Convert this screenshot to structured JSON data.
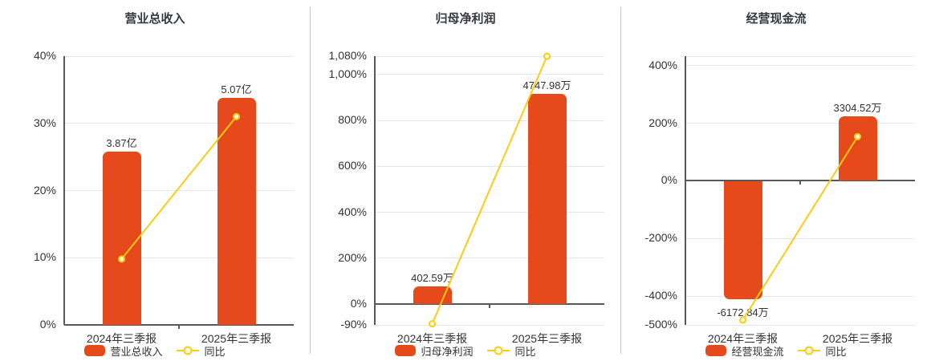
{
  "colors": {
    "bar": "#E6491A",
    "line": "#FACC15",
    "grid": "#E3E6EE",
    "axis": "#55585C",
    "text": "#333333",
    "divider": "#C4C4C4"
  },
  "chart_data": {
    "type": "bar+line",
    "layout_hint": "three panels side by side, legend bottom-center, gridlines on, dark zero axis",
    "charts": [
      {
        "title": "营业总收入",
        "categories": [
          "2024年三季报",
          "2025年三季报"
        ],
        "bar_name": "营业总收入",
        "line_name": "同比",
        "bar_value_labels": [
          "3.87亿",
          "5.07亿"
        ],
        "bar_plot_pct": [
          25.8,
          33.8
        ],
        "bar_label_side": [
          "above",
          "above"
        ],
        "line_pct": [
          9.8,
          31.0
        ],
        "axis": {
          "min": 0,
          "max": 40,
          "top_border": false,
          "ticks": [
            {
              "v": 40,
              "label": "40%"
            },
            {
              "v": 30,
              "label": "30%"
            },
            {
              "v": 20,
              "label": "20%"
            },
            {
              "v": 10,
              "label": "10%"
            },
            {
              "v": 0,
              "label": "0%"
            }
          ]
        }
      },
      {
        "title": "归母净利润",
        "categories": [
          "2024年三季报",
          "2025年三季报"
        ],
        "bar_name": "归母净利润",
        "line_name": "同比",
        "bar_value_labels": [
          "402.59万",
          "4747.98万"
        ],
        "bar_plot_pct": [
          78,
          915
        ],
        "bar_label_side": [
          "above",
          "above"
        ],
        "line_pct": [
          -85,
          1079.4
        ],
        "axis": {
          "min": -90,
          "max": 1080,
          "top_border": false,
          "ticks": [
            {
              "v": 1080,
              "label": "1,080%"
            },
            {
              "v": 1000,
              "label": "1,000%"
            },
            {
              "v": 800,
              "label": "800%"
            },
            {
              "v": 600,
              "label": "600%"
            },
            {
              "v": 400,
              "label": "400%"
            },
            {
              "v": 200,
              "label": "200%"
            },
            {
              "v": 0,
              "label": "0%"
            },
            {
              "v": -90,
              "label": "-90%"
            }
          ]
        }
      },
      {
        "title": "经营现金流",
        "categories": [
          "2024年三季报",
          "2025年三季报"
        ],
        "bar_name": "经营现金流",
        "line_name": "同比",
        "bar_value_labels": [
          "-6172.84万",
          "3304.52万"
        ],
        "bar_plot_pct": [
          -410,
          225
        ],
        "bar_label_side": [
          "below",
          "above"
        ],
        "line_pct": [
          -483,
          153.5
        ],
        "axis": {
          "min": -500,
          "max": 433,
          "top_border": true,
          "ticks": [
            {
              "v": 400,
              "label": "400%"
            },
            {
              "v": 200,
              "label": "200%"
            },
            {
              "v": 0,
              "label": "0%"
            },
            {
              "v": -200,
              "label": "-200%"
            },
            {
              "v": -400,
              "label": "-400%"
            },
            {
              "v": -500,
              "label": "-500%"
            }
          ]
        }
      }
    ]
  }
}
